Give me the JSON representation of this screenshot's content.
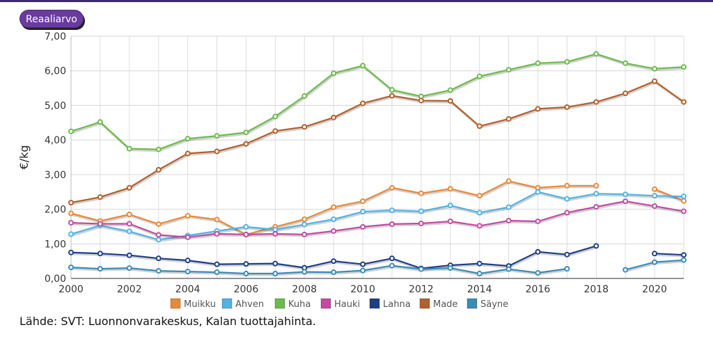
{
  "badge": {
    "label": "Reaaliarvo"
  },
  "source": "Lähde: SVT: Luonnonvarakeskus, Kalan tuottajahinta.",
  "chart_data": {
    "type": "line",
    "ylabel": "€/kg",
    "ylim": [
      0,
      7
    ],
    "xlim": [
      2000,
      2021
    ],
    "yticks": [
      "0,00",
      "1,00",
      "2,00",
      "3,00",
      "4,00",
      "5,00",
      "6,00",
      "7,00"
    ],
    "xticks": [
      "2000",
      "2002",
      "2004",
      "2006",
      "2008",
      "2010",
      "2012",
      "2014",
      "2016",
      "2018",
      "2020"
    ],
    "grid": true,
    "legend_position": "bottom",
    "x": [
      2000,
      2001,
      2002,
      2003,
      2004,
      2005,
      2006,
      2007,
      2008,
      2009,
      2010,
      2011,
      2012,
      2013,
      2014,
      2015,
      2016,
      2017,
      2018,
      2019,
      2020,
      2021
    ],
    "series": [
      {
        "name": "Muikku",
        "color": "#e8893a",
        "values": [
          1.88,
          1.66,
          1.85,
          1.57,
          1.81,
          1.7,
          1.27,
          1.49,
          1.71,
          2.06,
          2.23,
          2.62,
          2.46,
          2.59,
          2.39,
          2.81,
          2.62,
          2.68,
          2.68,
          null,
          2.58,
          2.24
        ]
      },
      {
        "name": "Ahven",
        "color": "#4fb3e6",
        "values": [
          1.28,
          1.53,
          1.36,
          1.12,
          1.24,
          1.37,
          1.49,
          1.41,
          1.56,
          1.71,
          1.93,
          1.97,
          1.94,
          2.11,
          1.9,
          2.06,
          2.5,
          2.3,
          2.45,
          2.43,
          2.39,
          2.37
        ]
      },
      {
        "name": "Kuha",
        "color": "#6cbb4c",
        "values": [
          4.25,
          4.52,
          3.75,
          3.73,
          4.04,
          4.12,
          4.22,
          4.68,
          5.27,
          5.93,
          6.15,
          5.45,
          5.26,
          5.44,
          5.84,
          6.03,
          6.22,
          6.26,
          6.49,
          6.22,
          6.06,
          6.11
        ]
      },
      {
        "name": "Hauki",
        "color": "#c24ba4",
        "values": [
          1.61,
          1.58,
          1.58,
          1.26,
          1.19,
          1.29,
          1.27,
          1.29,
          1.27,
          1.37,
          1.49,
          1.57,
          1.59,
          1.65,
          1.52,
          1.67,
          1.65,
          1.9,
          2.07,
          2.23,
          2.09,
          1.94
        ]
      },
      {
        "name": "Lahna",
        "color": "#1e3f86",
        "values": [
          0.75,
          0.72,
          0.67,
          0.58,
          0.52,
          0.41,
          0.42,
          0.43,
          0.31,
          0.5,
          0.41,
          0.58,
          0.29,
          0.38,
          0.43,
          0.36,
          0.77,
          0.69,
          0.94,
          null,
          0.72,
          0.68
        ]
      },
      {
        "name": "Made",
        "color": "#b2602c",
        "values": [
          2.19,
          2.35,
          2.62,
          3.14,
          3.61,
          3.67,
          3.89,
          4.26,
          4.38,
          4.65,
          5.06,
          5.28,
          5.14,
          5.13,
          4.4,
          4.61,
          4.9,
          4.95,
          5.1,
          5.35,
          5.7,
          5.1
        ]
      },
      {
        "name": "Säyne",
        "color": "#3a8bb8",
        "values": [
          0.32,
          0.28,
          0.3,
          0.22,
          0.2,
          0.18,
          0.14,
          0.14,
          0.19,
          0.18,
          0.23,
          0.37,
          0.27,
          0.3,
          0.14,
          0.27,
          0.16,
          0.28,
          null,
          0.25,
          0.47,
          0.53
        ]
      }
    ]
  }
}
